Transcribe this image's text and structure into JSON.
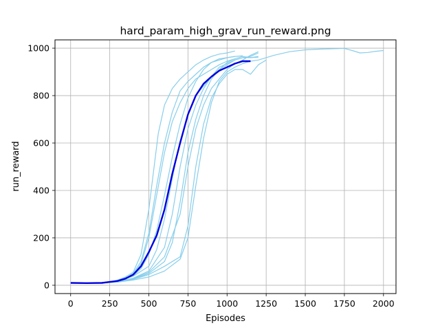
{
  "chart_data": {
    "type": "line",
    "title": "hard_param_high_grav_run_reward.png",
    "xlabel": "Episodes",
    "ylabel": "run_reward",
    "xlim": [
      -100,
      2080
    ],
    "ylim": [
      -35,
      1035
    ],
    "xticks": [
      0,
      250,
      500,
      750,
      1000,
      1250,
      1500,
      1750,
      2000
    ],
    "yticks": [
      0,
      200,
      400,
      600,
      800,
      1000
    ],
    "grid": true,
    "individual_color": "#87CEEB",
    "mean_color": "#0000E0",
    "individual_runs": [
      [
        [
          0,
          10
        ],
        [
          100,
          9
        ],
        [
          200,
          11
        ],
        [
          250,
          14
        ],
        [
          300,
          22
        ],
        [
          350,
          35
        ],
        [
          400,
          55
        ],
        [
          450,
          130
        ],
        [
          500,
          320
        ],
        [
          530,
          480
        ],
        [
          560,
          640
        ],
        [
          600,
          760
        ],
        [
          650,
          830
        ],
        [
          700,
          870
        ],
        [
          750,
          900
        ],
        [
          800,
          930
        ],
        [
          850,
          950
        ],
        [
          900,
          965
        ],
        [
          950,
          975
        ],
        [
          1000,
          980
        ],
        [
          1050,
          988
        ]
      ],
      [
        [
          0,
          10
        ],
        [
          100,
          9
        ],
        [
          200,
          11
        ],
        [
          300,
          20
        ],
        [
          350,
          30
        ],
        [
          400,
          50
        ],
        [
          450,
          100
        ],
        [
          500,
          220
        ],
        [
          550,
          420
        ],
        [
          600,
          600
        ],
        [
          650,
          730
        ],
        [
          700,
          820
        ],
        [
          750,
          860
        ],
        [
          800,
          890
        ],
        [
          850,
          920
        ],
        [
          900,
          940
        ],
        [
          950,
          950
        ],
        [
          1000,
          960
        ],
        [
          1050,
          965
        ]
      ],
      [
        [
          0,
          10
        ],
        [
          100,
          9
        ],
        [
          200,
          10
        ],
        [
          300,
          18
        ],
        [
          400,
          40
        ],
        [
          450,
          70
        ],
        [
          500,
          130
        ],
        [
          550,
          230
        ],
        [
          600,
          380
        ],
        [
          650,
          540
        ],
        [
          700,
          680
        ],
        [
          750,
          790
        ],
        [
          800,
          860
        ],
        [
          850,
          910
        ],
        [
          900,
          940
        ],
        [
          950,
          955
        ],
        [
          1000,
          960
        ],
        [
          1050,
          965
        ],
        [
          1100,
          968
        ]
      ],
      [
        [
          0,
          10
        ],
        [
          100,
          9
        ],
        [
          200,
          10
        ],
        [
          300,
          18
        ],
        [
          400,
          38
        ],
        [
          500,
          80
        ],
        [
          550,
          150
        ],
        [
          600,
          280
        ],
        [
          650,
          450
        ],
        [
          700,
          610
        ],
        [
          750,
          720
        ],
        [
          800,
          800
        ],
        [
          850,
          840
        ],
        [
          900,
          880
        ],
        [
          950,
          920
        ],
        [
          1000,
          935
        ],
        [
          1050,
          950
        ],
        [
          1100,
          960
        ],
        [
          1150,
          965
        ],
        [
          1200,
          980
        ]
      ],
      [
        [
          0,
          10
        ],
        [
          100,
          9
        ],
        [
          200,
          10
        ],
        [
          300,
          16
        ],
        [
          400,
          30
        ],
        [
          500,
          60
        ],
        [
          600,
          160
        ],
        [
          650,
          300
        ],
        [
          700,
          500
        ],
        [
          750,
          660
        ],
        [
          800,
          760
        ],
        [
          850,
          830
        ],
        [
          900,
          880
        ],
        [
          950,
          910
        ],
        [
          1000,
          930
        ],
        [
          1050,
          950
        ],
        [
          1100,
          960
        ],
        [
          1150,
          960
        ],
        [
          1200,
          965
        ]
      ],
      [
        [
          0,
          10
        ],
        [
          100,
          9
        ],
        [
          200,
          10
        ],
        [
          300,
          15
        ],
        [
          400,
          28
        ],
        [
          500,
          55
        ],
        [
          600,
          120
        ],
        [
          700,
          300
        ],
        [
          750,
          500
        ],
        [
          800,
          660
        ],
        [
          850,
          760
        ],
        [
          900,
          830
        ],
        [
          950,
          870
        ],
        [
          1000,
          910
        ],
        [
          1050,
          935
        ],
        [
          1100,
          950
        ],
        [
          1150,
          970
        ],
        [
          1200,
          985
        ]
      ],
      [
        [
          0,
          10
        ],
        [
          100,
          9
        ],
        [
          200,
          10
        ],
        [
          300,
          14
        ],
        [
          400,
          25
        ],
        [
          500,
          45
        ],
        [
          600,
          80
        ],
        [
          700,
          120
        ],
        [
          750,
          250
        ],
        [
          800,
          500
        ],
        [
          850,
          680
        ],
        [
          900,
          790
        ],
        [
          950,
          850
        ],
        [
          1000,
          890
        ],
        [
          1050,
          910
        ],
        [
          1100,
          910
        ],
        [
          1150,
          890
        ],
        [
          1200,
          930
        ],
        [
          1250,
          950
        ]
      ],
      [
        [
          0,
          10
        ],
        [
          100,
          9
        ],
        [
          200,
          10
        ],
        [
          300,
          14
        ],
        [
          400,
          26
        ],
        [
          500,
          50
        ],
        [
          600,
          100
        ],
        [
          650,
          180
        ],
        [
          700,
          350
        ],
        [
          750,
          560
        ],
        [
          800,
          700
        ],
        [
          850,
          800
        ],
        [
          900,
          870
        ],
        [
          950,
          910
        ],
        [
          1000,
          940
        ],
        [
          1050,
          955
        ],
        [
          1100,
          965
        ],
        [
          1150,
          960
        ],
        [
          1200,
          962
        ]
      ],
      [
        [
          0,
          10
        ],
        [
          100,
          9
        ],
        [
          200,
          10
        ],
        [
          300,
          13
        ],
        [
          400,
          22
        ],
        [
          500,
          35
        ],
        [
          600,
          60
        ],
        [
          700,
          110
        ],
        [
          750,
          200
        ],
        [
          800,
          420
        ],
        [
          850,
          620
        ],
        [
          900,
          770
        ],
        [
          950,
          860
        ],
        [
          1000,
          900
        ],
        [
          1050,
          920
        ],
        [
          1100,
          935
        ],
        [
          1150,
          945
        ],
        [
          1200,
          950
        ],
        [
          1300,
          970
        ],
        [
          1400,
          985
        ],
        [
          1500,
          993
        ],
        [
          1600,
          996
        ],
        [
          1700,
          998
        ],
        [
          1750,
          999
        ],
        [
          1800,
          990
        ],
        [
          1850,
          980
        ],
        [
          1900,
          982
        ],
        [
          1950,
          987
        ],
        [
          2000,
          990
        ]
      ],
      [
        [
          0,
          10
        ],
        [
          100,
          9
        ],
        [
          200,
          11
        ],
        [
          300,
          19
        ],
        [
          400,
          45
        ],
        [
          450,
          90
        ],
        [
          500,
          200
        ],
        [
          550,
          380
        ],
        [
          600,
          560
        ],
        [
          650,
          690
        ],
        [
          700,
          770
        ],
        [
          750,
          830
        ],
        [
          800,
          870
        ],
        [
          850,
          890
        ],
        [
          900,
          910
        ],
        [
          950,
          930
        ],
        [
          1000,
          945
        ],
        [
          1050,
          955
        ]
      ]
    ],
    "mean_run": [
      [
        0,
        10
      ],
      [
        100,
        9
      ],
      [
        200,
        10
      ],
      [
        250,
        14
      ],
      [
        300,
        18
      ],
      [
        350,
        28
      ],
      [
        400,
        45
      ],
      [
        450,
        80
      ],
      [
        500,
        140
      ],
      [
        550,
        210
      ],
      [
        600,
        320
      ],
      [
        650,
        470
      ],
      [
        700,
        600
      ],
      [
        750,
        720
      ],
      [
        800,
        800
      ],
      [
        850,
        850
      ],
      [
        900,
        880
      ],
      [
        950,
        905
      ],
      [
        1000,
        920
      ],
      [
        1050,
        935
      ],
      [
        1100,
        945
      ],
      [
        1150,
        945
      ]
    ]
  }
}
